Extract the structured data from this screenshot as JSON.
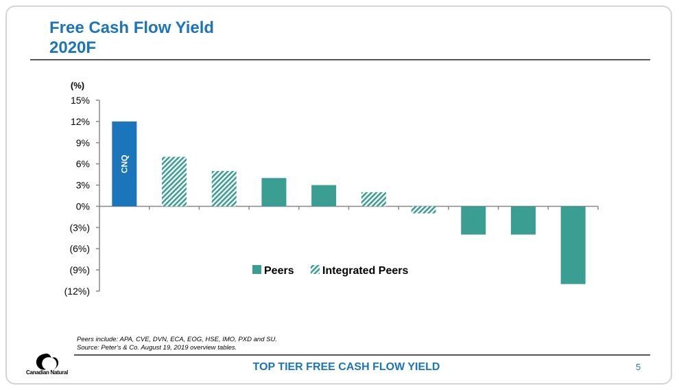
{
  "slide": {
    "title_line1": "Free Cash Flow Yield",
    "title_line2": "2020F",
    "notes_line1": "Peers include: APA, CVE, DVN, ECA, EOG, HSE, IMO, PXD and SU.",
    "notes_line2": "Source: Peter's & Co. August 19, 2019 overview tables.",
    "footer": "TOP TIER FREE CASH FLOW YIELD",
    "page_number": "5",
    "logo_text": "Canadian Natural",
    "colors": {
      "accent": "#1b75bb",
      "peers": "#3a9e93",
      "integrated": "#3a9e93"
    }
  },
  "chart_data": {
    "type": "bar",
    "ylabel": "(%)",
    "ylim": [
      -12,
      15
    ],
    "yticks": [
      15,
      12,
      9,
      6,
      3,
      0,
      -3,
      -6,
      -9,
      -12
    ],
    "ytick_labels": [
      "15%",
      "12%",
      "9%",
      "6%",
      "3%",
      "0%",
      "(3%)",
      "(6%)",
      "(9%)",
      "(12%)"
    ],
    "bars": [
      {
        "label": "CNQ",
        "value": 12,
        "group": "CNQ"
      },
      {
        "label": "",
        "value": 7,
        "group": "Integrated Peers"
      },
      {
        "label": "",
        "value": 5,
        "group": "Integrated Peers"
      },
      {
        "label": "",
        "value": 4,
        "group": "Peers"
      },
      {
        "label": "",
        "value": 3,
        "group": "Peers"
      },
      {
        "label": "",
        "value": 2,
        "group": "Integrated Peers"
      },
      {
        "label": "",
        "value": -1,
        "group": "Integrated Peers"
      },
      {
        "label": "",
        "value": -4,
        "group": "Peers"
      },
      {
        "label": "",
        "value": -4,
        "group": "Peers"
      },
      {
        "label": "",
        "value": -11,
        "group": "Peers"
      }
    ],
    "legend": {
      "placement": "bottom-center",
      "entries": [
        "Peers",
        "Integrated Peers"
      ]
    }
  }
}
